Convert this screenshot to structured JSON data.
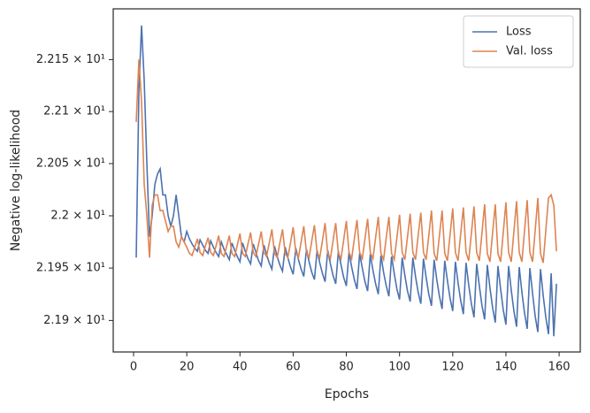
{
  "chart_data": {
    "type": "line",
    "xlabel": "Epochs",
    "ylabel": "Negative log-likelihood",
    "x": [
      1,
      2,
      3,
      4,
      5,
      6,
      7,
      8,
      9,
      10,
      11,
      12,
      13,
      14,
      15,
      16,
      17,
      18,
      19,
      20,
      21,
      22,
      23,
      24,
      25,
      26,
      27,
      28,
      29,
      30,
      31,
      32,
      33,
      34,
      35,
      36,
      37,
      38,
      39,
      40,
      41,
      42,
      43,
      44,
      45,
      46,
      47,
      48,
      49,
      50,
      51,
      52,
      53,
      54,
      55,
      56,
      57,
      58,
      59,
      60,
      61,
      62,
      63,
      64,
      65,
      66,
      67,
      68,
      69,
      70,
      71,
      72,
      73,
      74,
      75,
      76,
      77,
      78,
      79,
      80,
      81,
      82,
      83,
      84,
      85,
      86,
      87,
      88,
      89,
      90,
      91,
      92,
      93,
      94,
      95,
      96,
      97,
      98,
      99,
      100,
      101,
      102,
      103,
      104,
      105,
      106,
      107,
      108,
      109,
      110,
      111,
      112,
      113,
      114,
      115,
      116,
      117,
      118,
      119,
      120,
      121,
      122,
      123,
      124,
      125,
      126,
      127,
      128,
      129,
      130,
      131,
      132,
      133,
      134,
      135,
      136,
      137,
      138,
      139,
      140,
      141,
      142,
      143,
      144,
      145,
      146,
      147,
      148,
      149,
      150,
      151,
      152,
      153,
      154,
      155,
      156,
      157,
      158,
      159
    ],
    "series": [
      {
        "name": "Loss",
        "color": "#4c72b0",
        "values": [
          21.96,
          22.12,
          22.183,
          22.13,
          22.05,
          21.98,
          22.0,
          22.03,
          22.04,
          22.045,
          22.02,
          22.02,
          22.0,
          21.99,
          22.0,
          22.02,
          22.0,
          21.98,
          21.975,
          21.985,
          21.978,
          21.973,
          21.969,
          21.966,
          21.977,
          21.972,
          21.967,
          21.964,
          21.976,
          21.97,
          21.965,
          21.961,
          21.975,
          21.968,
          21.963,
          21.958,
          21.974,
          21.967,
          21.961,
          21.956,
          21.974,
          21.966,
          21.959,
          21.954,
          21.973,
          21.965,
          21.957,
          21.952,
          21.972,
          21.963,
          21.955,
          21.949,
          21.971,
          21.961,
          21.953,
          21.947,
          21.97,
          21.96,
          21.951,
          21.944,
          21.969,
          21.958,
          21.949,
          21.942,
          21.968,
          21.956,
          21.946,
          21.939,
          21.967,
          21.955,
          21.945,
          21.937,
          21.967,
          21.954,
          21.943,
          21.935,
          21.966,
          21.953,
          21.941,
          21.933,
          21.965,
          21.951,
          21.939,
          21.93,
          21.964,
          21.95,
          21.937,
          21.928,
          21.963,
          21.948,
          21.935,
          21.925,
          21.962,
          21.946,
          21.933,
          21.923,
          21.961,
          21.945,
          21.93,
          21.92,
          21.96,
          21.943,
          21.928,
          21.918,
          21.96,
          21.942,
          21.927,
          21.916,
          21.959,
          21.941,
          21.925,
          21.914,
          21.958,
          21.939,
          21.923,
          21.911,
          21.957,
          21.938,
          21.921,
          21.909,
          21.956,
          21.936,
          21.919,
          21.906,
          21.955,
          21.934,
          21.916,
          21.903,
          21.954,
          21.933,
          21.914,
          21.901,
          21.953,
          21.931,
          21.912,
          21.898,
          21.952,
          21.93,
          21.91,
          21.896,
          21.952,
          21.929,
          21.909,
          21.894,
          21.951,
          21.927,
          21.907,
          21.892,
          21.95,
          21.926,
          21.904,
          21.889,
          21.949,
          21.924,
          21.903,
          21.887,
          21.945,
          21.885,
          21.935
        ]
      },
      {
        "name": "Val. loss",
        "color": "#dd8452",
        "values": [
          22.09,
          22.15,
          22.11,
          22.03,
          22.0,
          21.96,
          22.01,
          22.02,
          22.02,
          22.005,
          22.005,
          21.995,
          21.985,
          21.99,
          21.99,
          21.975,
          21.97,
          21.98,
          21.975,
          21.97,
          21.964,
          21.962,
          21.97,
          21.978,
          21.965,
          21.962,
          21.971,
          21.979,
          21.965,
          21.962,
          21.971,
          21.981,
          21.964,
          21.961,
          21.971,
          21.981,
          21.964,
          21.961,
          21.972,
          21.983,
          21.964,
          21.961,
          21.973,
          21.984,
          21.965,
          21.961,
          21.973,
          21.985,
          21.965,
          21.961,
          21.974,
          21.987,
          21.964,
          21.96,
          21.974,
          21.987,
          21.964,
          21.96,
          21.974,
          21.989,
          21.965,
          21.96,
          21.975,
          21.99,
          21.965,
          21.96,
          21.976,
          21.991,
          21.965,
          21.96,
          21.976,
          21.993,
          21.964,
          21.959,
          21.976,
          21.993,
          21.964,
          21.959,
          21.977,
          21.995,
          21.965,
          21.959,
          21.978,
          21.996,
          21.965,
          21.959,
          21.978,
          21.997,
          21.965,
          21.959,
          21.979,
          21.999,
          21.964,
          21.958,
          21.979,
          21.999,
          21.964,
          21.958,
          21.979,
          22.001,
          21.965,
          21.958,
          21.98,
          22.002,
          21.965,
          21.958,
          21.981,
          22.003,
          21.965,
          21.958,
          21.981,
          22.005,
          21.964,
          21.957,
          21.981,
          22.005,
          21.964,
          21.957,
          21.982,
          22.007,
          21.965,
          21.957,
          21.983,
          22.008,
          21.965,
          21.957,
          21.983,
          22.009,
          21.965,
          21.957,
          21.984,
          22.011,
          21.964,
          21.956,
          21.984,
          22.011,
          21.964,
          21.956,
          21.984,
          22.013,
          21.965,
          21.956,
          21.985,
          22.014,
          21.965,
          21.956,
          21.986,
          22.015,
          21.965,
          21.956,
          21.986,
          22.017,
          21.964,
          21.955,
          21.986,
          22.017,
          22.02,
          22.01,
          21.966
        ]
      }
    ],
    "xlim": [
      -7.65,
      167.95
    ],
    "xticks": [
      0,
      20,
      40,
      60,
      80,
      100,
      120,
      140,
      160
    ],
    "ylim": [
      21.87,
      22.199
    ],
    "ylog": true,
    "yticks": [
      {
        "value": 21.9,
        "label": "2.19 × 10¹"
      },
      {
        "value": 21.95,
        "label": "2.195 × 10¹"
      },
      {
        "value": 22.0,
        "label": "2.2 × 10¹"
      },
      {
        "value": 22.05,
        "label": "2.205 × 10¹"
      },
      {
        "value": 22.1,
        "label": "2.21 × 10¹"
      },
      {
        "value": 22.15,
        "label": "2.215 × 10¹"
      }
    ],
    "legend": "upper right"
  }
}
